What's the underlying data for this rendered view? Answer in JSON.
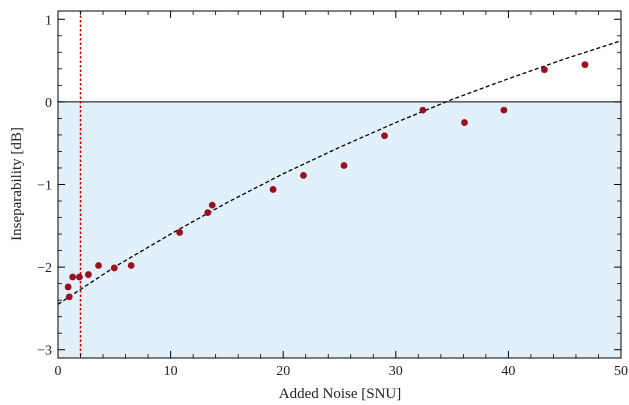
{
  "chart_data": {
    "type": "scatter",
    "xlabel": "Added Noise [SNU]",
    "ylabel": "Inseparability [dB]",
    "xlim": [
      0,
      50
    ],
    "ylim": [
      -3.1,
      1.1
    ],
    "x_ticks": [
      0,
      10,
      20,
      30,
      40,
      50
    ],
    "x_tick_labels": [
      "0",
      "10",
      "20",
      "30",
      "40",
      "50"
    ],
    "y_ticks": [
      -3,
      -2,
      -1,
      0,
      1
    ],
    "y_tick_labels": [
      "−3",
      "−2",
      "−1",
      "0",
      "1"
    ],
    "grid": false,
    "legend": "none",
    "shaded_region": {
      "y_from": -3.1,
      "y_to": 0,
      "color": "#e2f0fb"
    },
    "reference_lines": [
      {
        "orientation": "horizontal",
        "y": 0,
        "color": "#000000",
        "style": "solid"
      },
      {
        "orientation": "vertical",
        "x": 2.0,
        "color": "#cc0000",
        "style": "dotted"
      }
    ],
    "fit_curve": {
      "style": "dashed",
      "color": "#000000",
      "x": [
        0,
        5,
        10,
        15,
        20,
        25,
        30,
        35,
        40,
        45,
        50
      ],
      "y": [
        -2.45,
        -2.0,
        -1.6,
        -1.22,
        -0.87,
        -0.55,
        -0.25,
        0.03,
        0.28,
        0.52,
        0.74
      ]
    },
    "series": [
      {
        "color": "#9b1020",
        "points": [
          [
            0.9,
            -2.24
          ],
          [
            1.0,
            -2.36
          ],
          [
            1.3,
            -2.12
          ],
          [
            1.9,
            -2.12
          ],
          [
            2.7,
            -2.09
          ],
          [
            3.6,
            -1.98
          ],
          [
            5.0,
            -2.01
          ],
          [
            6.5,
            -1.98
          ],
          [
            10.8,
            -1.58
          ],
          [
            13.3,
            -1.34
          ],
          [
            13.7,
            -1.25
          ],
          [
            19.1,
            -1.06
          ],
          [
            21.8,
            -0.89
          ],
          [
            25.4,
            -0.77
          ],
          [
            29.0,
            -0.41
          ],
          [
            32.4,
            -0.1
          ],
          [
            36.1,
            -0.25
          ],
          [
            39.6,
            -0.1
          ],
          [
            43.2,
            0.39
          ],
          [
            46.8,
            0.45
          ]
        ]
      }
    ]
  }
}
